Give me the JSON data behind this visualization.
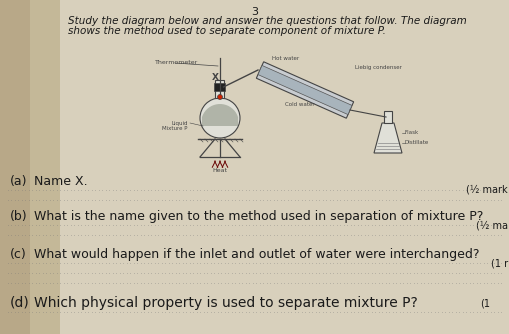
{
  "page_number": "3",
  "instruction_line1": "Study the diagram below and answer the questions that follow. The diagram",
  "instruction_line2": "shows the method used to separate component of mixture P.",
  "diagram_labels": {
    "thermometer": "Thermometer",
    "hot_water": "Hot water",
    "x_label": "X",
    "liebig_condenser": "Liebig condenser",
    "cold_water": "Cold water",
    "liquid_mixture": "Liquid\nMixture P",
    "flask_label": "Flask",
    "distillate": "Distillate",
    "heat": "Heat"
  },
  "questions": [
    {
      "label": "(a)",
      "text": "Name X.",
      "marks": "(½ mark"
    },
    {
      "label": "(b)",
      "text": "What is the name given to the method used in separation of mixture P?",
      "marks": "(½ ma"
    },
    {
      "label": "(c)",
      "text": "What would happen if the inlet and outlet of water were interchanged?",
      "marks": "(1 r"
    },
    {
      "label": "(d)",
      "text": "Which physical property is used to separate mixture P?",
      "marks": "(1"
    }
  ],
  "bg_color": "#c8bfa8",
  "paper_color": "#ddd8c8",
  "left_shadow": "#a89880",
  "text_color": "#1a1a1a",
  "dotted_color": "#777777",
  "diagram_ink": "#444444",
  "title_fontsize": 7.5,
  "question_fontsize_ab": 9.0,
  "question_fontsize_cd": 10.0,
  "small_fontsize": 7.0
}
